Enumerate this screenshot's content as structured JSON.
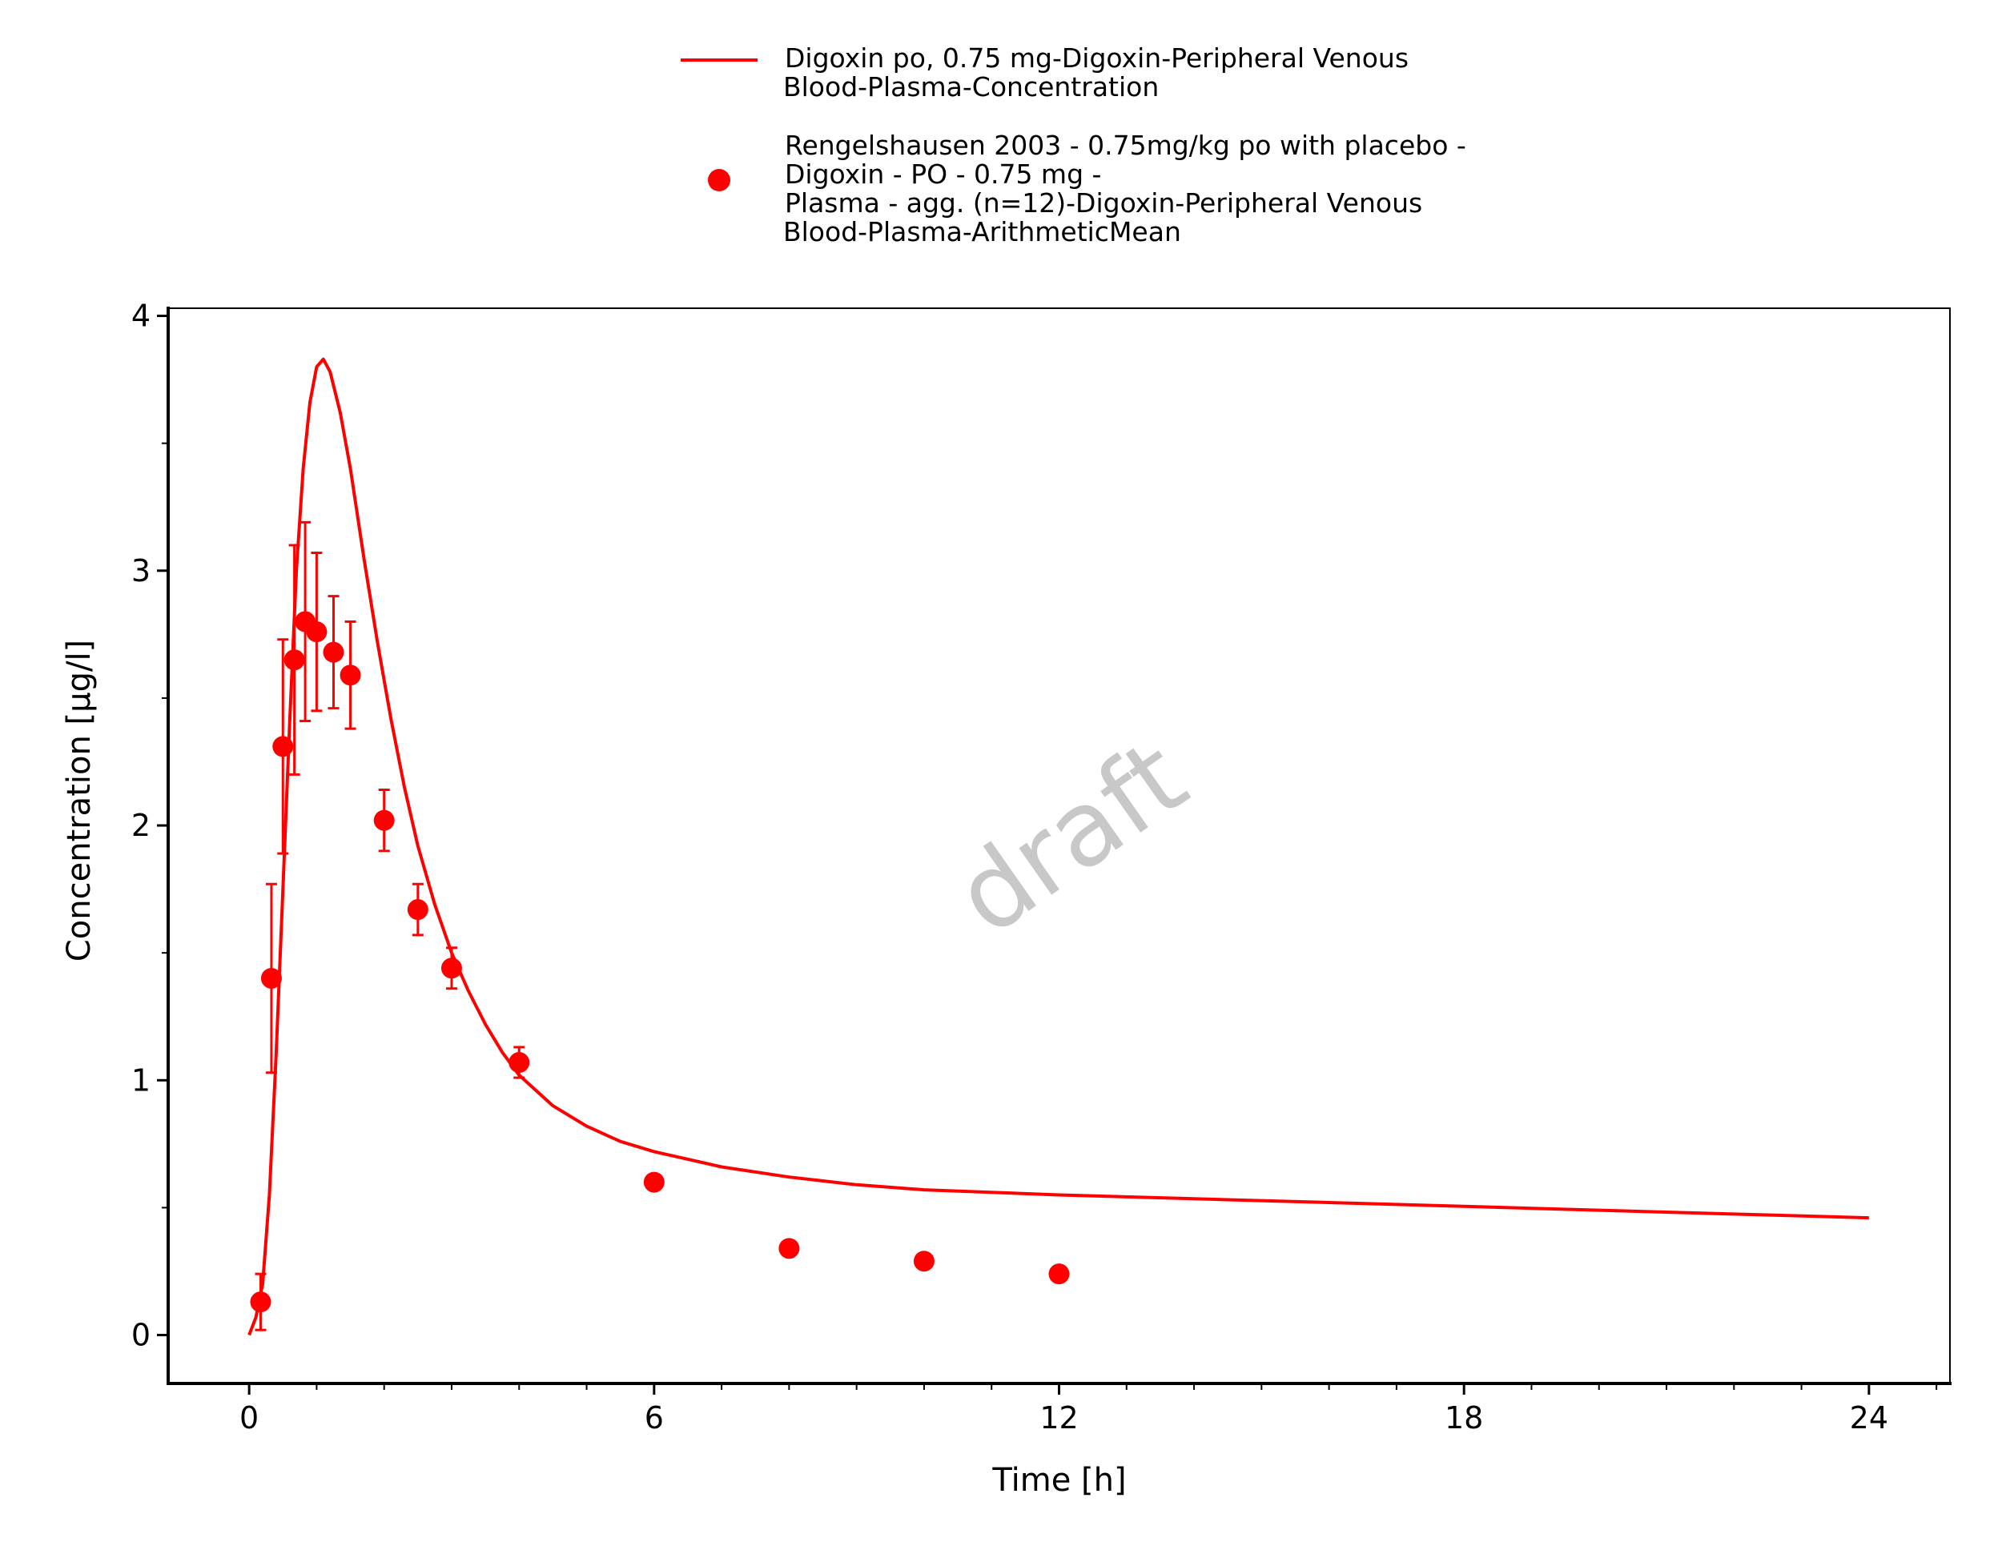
{
  "chart_data": {
    "type": "scatter",
    "xlabel": "Time [h]",
    "ylabel": "Concentration [µg/l]",
    "xlim": [
      -1.2,
      25.2
    ],
    "ylim": [
      -0.19,
      4.03
    ],
    "x_ticks": [
      0,
      6,
      12,
      18,
      24
    ],
    "y_ticks": [
      0,
      1,
      2,
      3,
      4
    ],
    "watermark": "draft",
    "grid": false,
    "legend_placement": "top-center",
    "series": [
      {
        "name": "Digoxin po, 0.75 mg-Digoxin-Peripheral Venous Blood-Plasma-Concentration",
        "legend_lines": [
          "Digoxin po, 0.75 mg-Digoxin-Peripheral Venous",
          "Blood-Plasma-Concentration"
        ],
        "kind": "line",
        "color": "#ff0000",
        "x": [
          0,
          0.1,
          0.2,
          0.3,
          0.4,
          0.5,
          0.6,
          0.7,
          0.8,
          0.9,
          1.0,
          1.1,
          1.2,
          1.35,
          1.5,
          1.7,
          1.9,
          2.1,
          2.3,
          2.5,
          2.75,
          3.0,
          3.25,
          3.5,
          3.75,
          4.0,
          4.5,
          5.0,
          5.5,
          6.0,
          7.0,
          8.0,
          9.0,
          10.0,
          12.0,
          14.0,
          16.0,
          18.0,
          20.0,
          22.0,
          24.0
        ],
        "y": [
          0.0,
          0.07,
          0.2,
          0.55,
          1.1,
          1.75,
          2.4,
          3.0,
          3.4,
          3.66,
          3.8,
          3.83,
          3.78,
          3.62,
          3.4,
          3.05,
          2.72,
          2.42,
          2.15,
          1.92,
          1.69,
          1.5,
          1.35,
          1.22,
          1.11,
          1.02,
          0.9,
          0.82,
          0.76,
          0.72,
          0.66,
          0.62,
          0.59,
          0.57,
          0.55,
          0.535,
          0.52,
          0.505,
          0.49,
          0.475,
          0.46
        ]
      },
      {
        "name": "Rengelshausen 2003 - 0.75mg/kg po with placebo - Digoxin - PO - 0.75 mg - Plasma - agg. (n=12)-Digoxin-Peripheral Venous Blood-Plasma-ArithmeticMean",
        "legend_lines": [
          "Rengelshausen 2003 - 0.75mg/kg po with placebo -",
          "Digoxin - PO - 0.75 mg -",
          "Plasma - agg. (n=12)-Digoxin-Peripheral Venous",
          "Blood-Plasma-ArithmeticMean"
        ],
        "kind": "scatter",
        "color": "#ff0000",
        "x": [
          0.17,
          0.33,
          0.5,
          0.67,
          0.83,
          1.0,
          1.25,
          1.5,
          2.0,
          2.5,
          3.0,
          4.0,
          6.0,
          8.0,
          10.0,
          12.0
        ],
        "y": [
          0.13,
          1.4,
          2.31,
          2.65,
          2.8,
          2.76,
          2.68,
          2.59,
          2.02,
          1.67,
          1.44,
          1.07,
          0.6,
          0.34,
          0.29,
          0.24
        ],
        "err": [
          0.11,
          0.37,
          0.42,
          0.45,
          0.39,
          0.31,
          0.22,
          0.21,
          0.12,
          0.1,
          0.08,
          0.06,
          0.0,
          0.0,
          0.0,
          0.0
        ]
      }
    ]
  }
}
